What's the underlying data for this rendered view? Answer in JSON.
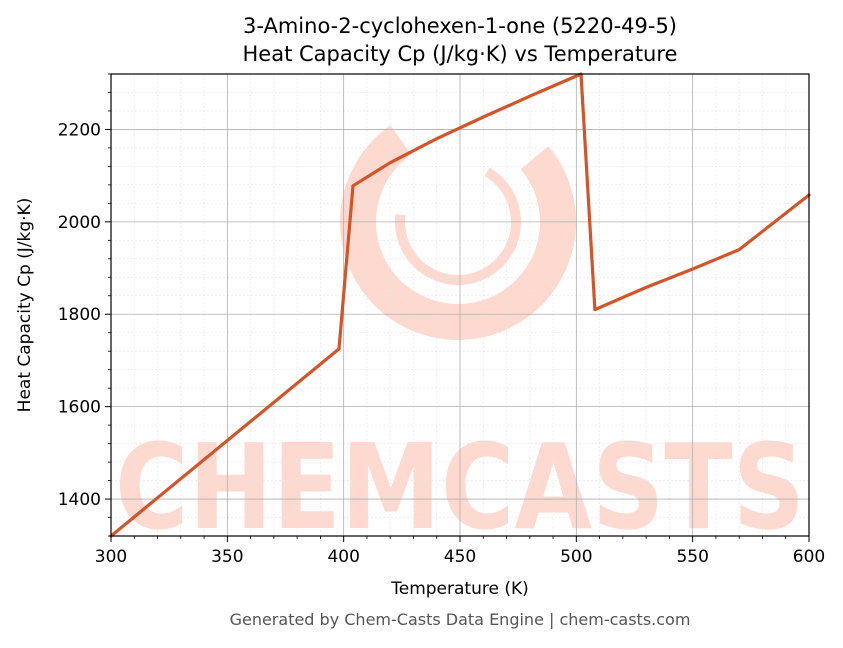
{
  "chart_data": {
    "type": "line",
    "title_line1": "3-Amino-2-cyclohexen-1-one (5220-49-5)",
    "title_line2": "Heat Capacity Cp (J/kg·K) vs Temperature",
    "xlabel": "Temperature (K)",
    "ylabel": "Heat Capacity Cp (J/kg·K)",
    "xlim": [
      300,
      600
    ],
    "ylim": [
      1320,
      2320
    ],
    "xticks": [
      300,
      350,
      400,
      450,
      500,
      550,
      600
    ],
    "yticks": [
      1400,
      1600,
      1800,
      2000,
      2200
    ],
    "grid": true,
    "series": [
      {
        "color": "#d4542a",
        "x": [
          300,
          398,
          404,
          420,
          440,
          460,
          480,
          502,
          508,
          530,
          550,
          570,
          600
        ],
        "y": [
          1320,
          1725,
          2078,
          2128,
          2180,
          2227,
          2272,
          2320,
          1810,
          1858,
          1898,
          1940,
          2058
        ]
      }
    ]
  },
  "watermark": {
    "text": "CHEMCASTS",
    "color": "#fdd9d0"
  },
  "footer": "Generated by Chem-Casts Data Engine | chem-casts.com"
}
